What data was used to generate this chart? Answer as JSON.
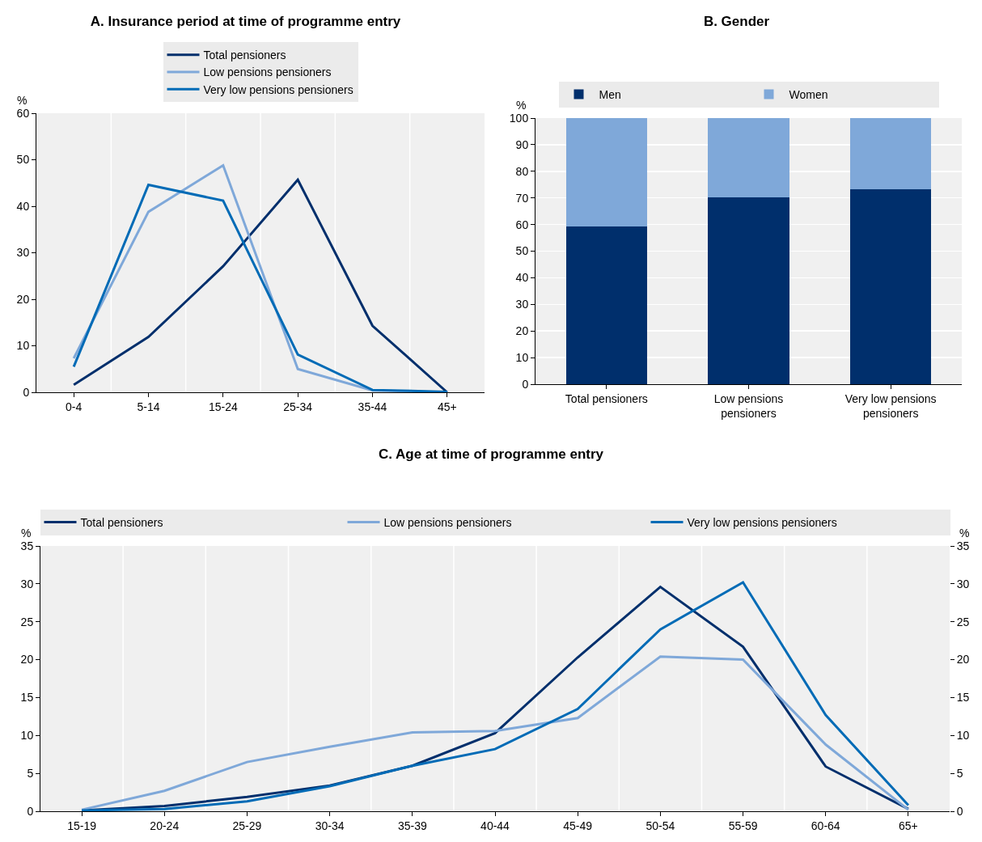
{
  "chart_data": [
    {
      "type": "line",
      "title": "A. Insurance period at time of programme entry",
      "ylabel": "%",
      "categories": [
        "0-4",
        "5-14",
        "15-24",
        "25-34",
        "35-44",
        "45+"
      ],
      "series": [
        {
          "name": "Total pensioners",
          "color": "#002f6c",
          "values": [
            1.6,
            11.9,
            27.1,
            45.7,
            14.3,
            0
          ]
        },
        {
          "name": "Low pensions pensioners",
          "color": "#7fa8d9",
          "values": [
            7.3,
            38.8,
            48.8,
            5.0,
            0.4,
            0
          ]
        },
        {
          "name": "Very low pensions pensioners",
          "color": "#006bb6",
          "values": [
            5.5,
            44.6,
            41.2,
            8.1,
            0.5,
            0.1
          ]
        }
      ],
      "ylim": [
        0,
        60
      ],
      "yticks": [
        0,
        10,
        20,
        30,
        40,
        50,
        60
      ],
      "grid": "x",
      "legend": "top",
      "line_style": "solid"
    },
    {
      "type": "bar",
      "title": "B. Gender",
      "ylabel": "%",
      "categories": [
        "Total pensioners",
        "Low pensions pensioners",
        "Very low pensions pensioners"
      ],
      "stacked": true,
      "series": [
        {
          "name": "Men",
          "color": "#002f6c",
          "values": [
            59.3,
            70.2,
            73.2
          ]
        },
        {
          "name": "Women",
          "color": "#7fa8d9",
          "values": [
            40.7,
            29.8,
            26.8
          ]
        }
      ],
      "ylim": [
        0,
        100
      ],
      "yticks": [
        0,
        10,
        20,
        30,
        40,
        50,
        60,
        70,
        80,
        90,
        100
      ],
      "grid": "y",
      "legend": "top"
    },
    {
      "type": "line",
      "title": "C. Age at time of programme entry",
      "ylabel": "%",
      "y2label": "%",
      "categories": [
        "15-19",
        "20-24",
        "25-29",
        "30-34",
        "35-39",
        "40-44",
        "45-49",
        "50-54",
        "55-59",
        "60-64",
        "65+"
      ],
      "series": [
        {
          "name": "Total pensioners",
          "color": "#002f6c",
          "values": [
            0.1,
            0.7,
            1.9,
            3.4,
            6.0,
            10.3,
            20.3,
            29.6,
            21.7,
            5.9,
            0.3
          ]
        },
        {
          "name": "Low pensions pensioners",
          "color": "#7fa8d9",
          "values": [
            0.2,
            2.7,
            6.5,
            8.5,
            10.4,
            10.6,
            12.3,
            20.4,
            20.0,
            8.8,
            0.2
          ]
        },
        {
          "name": "Very low pensions pensioners",
          "color": "#006bb6",
          "values": [
            0.1,
            0.3,
            1.3,
            3.3,
            6.0,
            8.2,
            13.5,
            24.0,
            30.2,
            12.7,
            0.8
          ]
        }
      ],
      "ylim": [
        0,
        35
      ],
      "yticks": [
        0,
        5,
        10,
        15,
        20,
        25,
        30,
        35
      ],
      "y2lim": [
        0,
        35
      ],
      "y2ticks": [
        0,
        5,
        10,
        15,
        20,
        25,
        30,
        35
      ],
      "grid": "x",
      "legend": "top",
      "line_style": "solid"
    }
  ]
}
